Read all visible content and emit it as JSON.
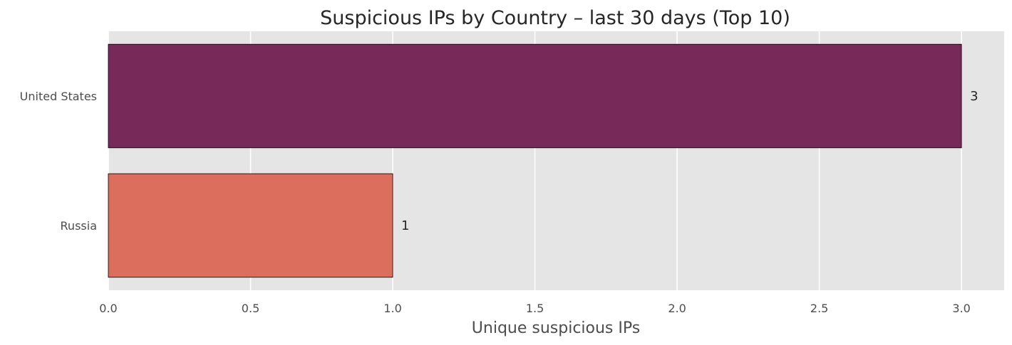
{
  "chart_data": {
    "type": "bar",
    "orientation": "horizontal",
    "title": "Suspicious IPs by Country – last 30 days (Top 10)",
    "xlabel": "Unique suspicious IPs",
    "ylabel": "",
    "categories": [
      "United States",
      "Russia"
    ],
    "values": [
      3,
      1
    ],
    "data_labels": [
      "3",
      "1"
    ],
    "colors": [
      "#772a5a",
      "#db6e5c"
    ],
    "xlim": [
      0,
      3.15
    ],
    "xticks": [
      0.0,
      0.5,
      1.0,
      1.5,
      2.0,
      2.5,
      3.0
    ],
    "xtick_labels": [
      "0.0",
      "0.5",
      "1.0",
      "1.5",
      "2.0",
      "2.5",
      "3.0"
    ],
    "grid": true,
    "background": "#e5e5e5",
    "gridline_color": "#ffffff",
    "bar_edge_color": "#000000"
  }
}
